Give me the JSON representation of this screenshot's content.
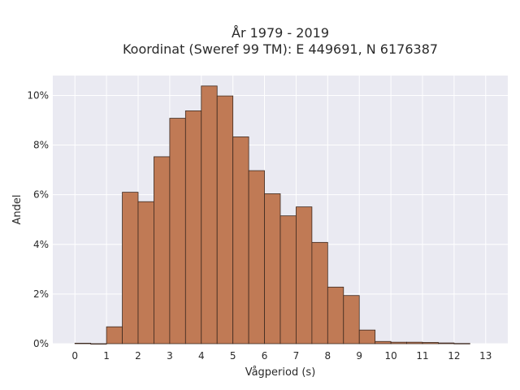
{
  "chart_data": {
    "type": "bar",
    "title_line1": "År 1979 - 2019",
    "title_line2": "Koordinat (Sweref 99 TM): E 449691, N 6176387",
    "xlabel": "Vågperiod (s)",
    "ylabel": "Andel",
    "xlim": [
      -0.7,
      13.7
    ],
    "ylim": [
      0,
      10.8
    ],
    "x_ticks": [
      "0",
      "1",
      "2",
      "3",
      "4",
      "5",
      "6",
      "7",
      "8",
      "9",
      "10",
      "11",
      "12",
      "13"
    ],
    "y_ticks": [
      "0%",
      "2%",
      "4%",
      "6%",
      "8%",
      "10%"
    ],
    "bin_width": 0.5,
    "bin_starts": [
      0,
      0.5,
      1,
      1.5,
      2,
      2.5,
      3,
      3.5,
      4,
      4.5,
      5,
      5.5,
      6,
      6.5,
      7,
      7.5,
      8,
      8.5,
      9,
      9.5,
      10,
      10.5,
      11,
      11.5,
      12
    ],
    "values": [
      0.02,
      0,
      0.68,
      6.1,
      5.72,
      7.53,
      9.08,
      9.38,
      10.38,
      9.98,
      8.33,
      6.97,
      6.04,
      5.15,
      5.51,
      4.08,
      2.28,
      1.94,
      0.55,
      0.09,
      0.06,
      0.06,
      0.05,
      0.03,
      0.01
    ],
    "bar_color": "#c07a55",
    "edge_color": "#3d2a20",
    "background_color": "#eaeaf2",
    "grid": true
  }
}
